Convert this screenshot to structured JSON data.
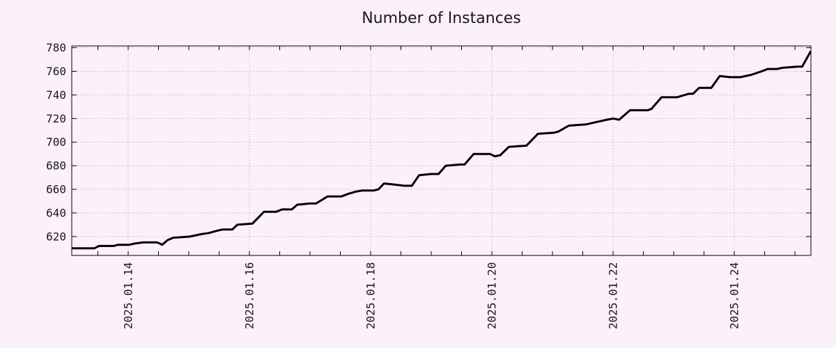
{
  "colors": {
    "background": "#fcf0fa",
    "line": "#000000",
    "grid": "#a9a9a9",
    "axis": "#000000",
    "text": "#1a1a1a"
  },
  "chart_data": {
    "type": "line",
    "title": "Number of Instances",
    "xlabel": "",
    "ylabel": "",
    "legend": false,
    "grid": true,
    "x_axis": {
      "lim": [
        13.069,
        25.264
      ],
      "major_ticks": [
        14,
        16,
        18,
        20,
        22,
        24
      ],
      "tick_labels": [
        "2025.01.14",
        "2025.01.16",
        "2025.01.18",
        "2025.01.20",
        "2025.01.22",
        "2025.01.24"
      ],
      "minor_tick_step": 0.5
    },
    "y_axis": {
      "lim": [
        604,
        781.5
      ],
      "major_ticks": [
        620,
        640,
        660,
        680,
        700,
        720,
        740,
        760,
        780
      ],
      "tick_labels": [
        "620",
        "640",
        "660",
        "680",
        "700",
        "720",
        "740",
        "760",
        "780"
      ]
    },
    "series": [
      {
        "name": "instances",
        "color": "#000000",
        "points": [
          [
            13.07,
            610
          ],
          [
            13.44,
            610
          ],
          [
            13.52,
            612
          ],
          [
            13.76,
            612
          ],
          [
            13.83,
            613
          ],
          [
            14.02,
            613
          ],
          [
            14.1,
            614
          ],
          [
            14.25,
            615
          ],
          [
            14.48,
            615
          ],
          [
            14.56,
            613
          ],
          [
            14.65,
            617
          ],
          [
            14.74,
            619
          ],
          [
            15.02,
            620
          ],
          [
            15.2,
            622
          ],
          [
            15.33,
            623
          ],
          [
            15.47,
            625
          ],
          [
            15.56,
            626
          ],
          [
            15.72,
            626
          ],
          [
            15.8,
            630
          ],
          [
            16.05,
            631
          ],
          [
            16.24,
            641
          ],
          [
            16.44,
            641
          ],
          [
            16.54,
            643
          ],
          [
            16.7,
            643
          ],
          [
            16.79,
            647
          ],
          [
            17.0,
            648
          ],
          [
            17.1,
            648
          ],
          [
            17.29,
            654
          ],
          [
            17.52,
            654
          ],
          [
            17.62,
            656
          ],
          [
            17.75,
            658
          ],
          [
            17.87,
            659
          ],
          [
            18.05,
            659
          ],
          [
            18.13,
            660
          ],
          [
            18.22,
            665
          ],
          [
            18.4,
            664
          ],
          [
            18.55,
            663
          ],
          [
            18.68,
            663
          ],
          [
            18.8,
            672
          ],
          [
            19.0,
            673
          ],
          [
            19.12,
            673
          ],
          [
            19.24,
            680
          ],
          [
            19.48,
            681
          ],
          [
            19.55,
            681
          ],
          [
            19.7,
            690
          ],
          [
            19.97,
            690
          ],
          [
            20.05,
            688
          ],
          [
            20.14,
            689
          ],
          [
            20.28,
            696
          ],
          [
            20.57,
            697
          ],
          [
            20.76,
            707
          ],
          [
            21.03,
            708
          ],
          [
            21.1,
            709
          ],
          [
            21.27,
            714
          ],
          [
            21.55,
            715
          ],
          [
            21.72,
            717
          ],
          [
            21.9,
            719
          ],
          [
            22.0,
            720
          ],
          [
            22.1,
            719
          ],
          [
            22.28,
            727
          ],
          [
            22.57,
            727
          ],
          [
            22.63,
            728
          ],
          [
            22.8,
            738
          ],
          [
            23.05,
            738
          ],
          [
            23.12,
            739
          ],
          [
            23.25,
            741
          ],
          [
            23.32,
            741
          ],
          [
            23.42,
            746
          ],
          [
            23.62,
            746
          ],
          [
            23.76,
            756
          ],
          [
            23.93,
            755
          ],
          [
            24.1,
            755
          ],
          [
            24.28,
            757
          ],
          [
            24.45,
            760
          ],
          [
            24.55,
            762
          ],
          [
            24.7,
            762
          ],
          [
            24.8,
            763
          ],
          [
            25.05,
            764
          ],
          [
            25.12,
            764
          ],
          [
            25.26,
            777
          ]
        ]
      }
    ]
  }
}
